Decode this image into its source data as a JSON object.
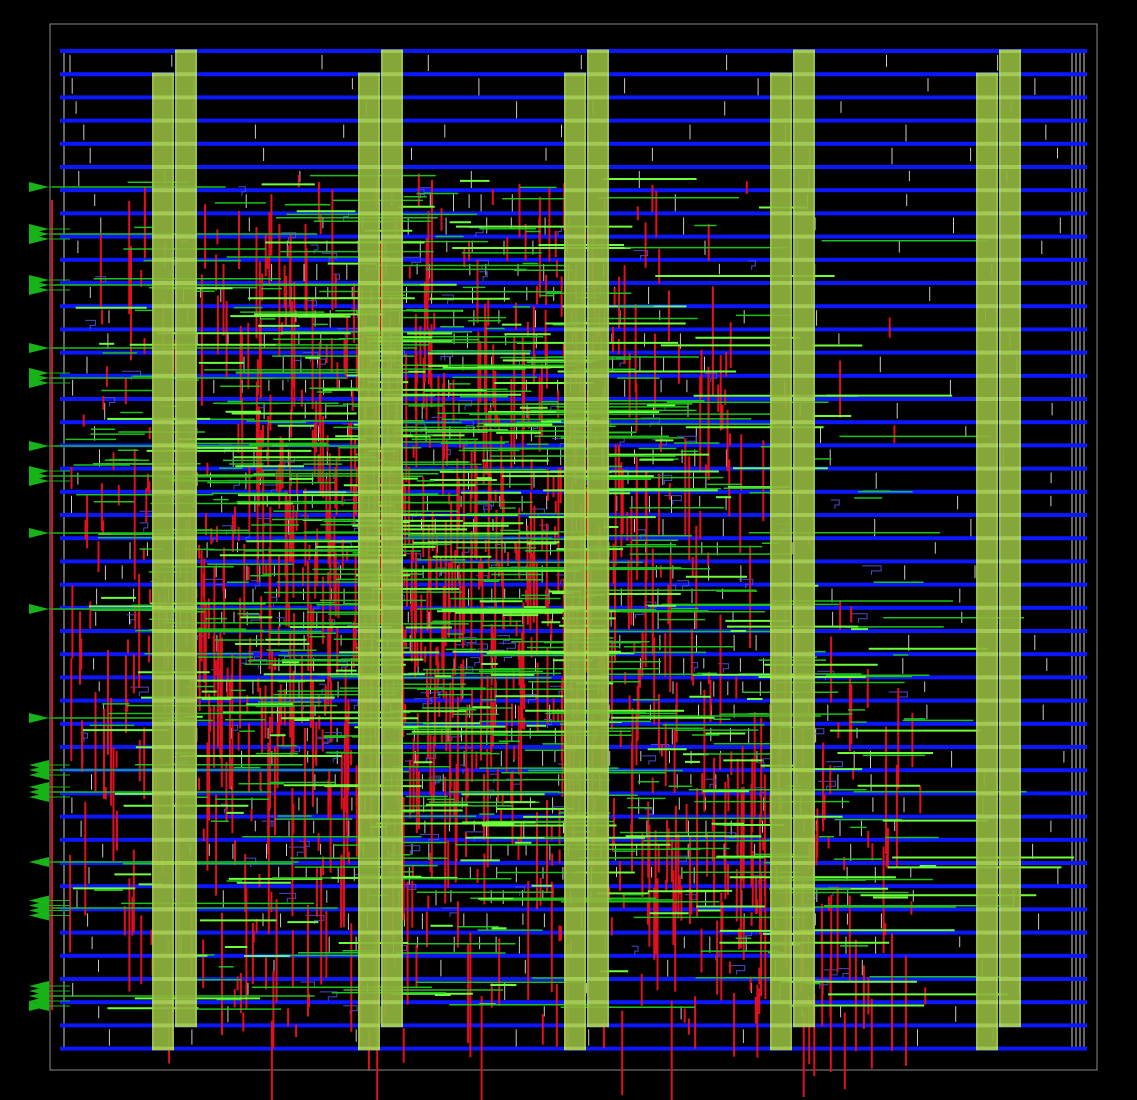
{
  "view": {
    "kind": "chip layout (place-and-route) view",
    "background_color": "#000000",
    "die_outline_color": "#8a8a8a"
  },
  "layers": {
    "power_rail": {
      "color": "#0a17ff",
      "count": 44
    },
    "power_stripe": {
      "color": "#8fb43e",
      "highlight_color": "#c8f060",
      "columns": 5,
      "count": 10
    },
    "metal_vertical": {
      "color": "#e0101e"
    },
    "metal_horizontal": {
      "color": "#1bc21b",
      "highlight_color": "#6cff3c"
    },
    "cell_outline": {
      "color": "#c8c8c8"
    },
    "via": {
      "color": "#4a4ad0"
    }
  },
  "io_pins": {
    "color": "#17b317",
    "left_edge_groups": 18,
    "right_pointing_groups": 11,
    "left_pointing_groups": 5
  }
}
